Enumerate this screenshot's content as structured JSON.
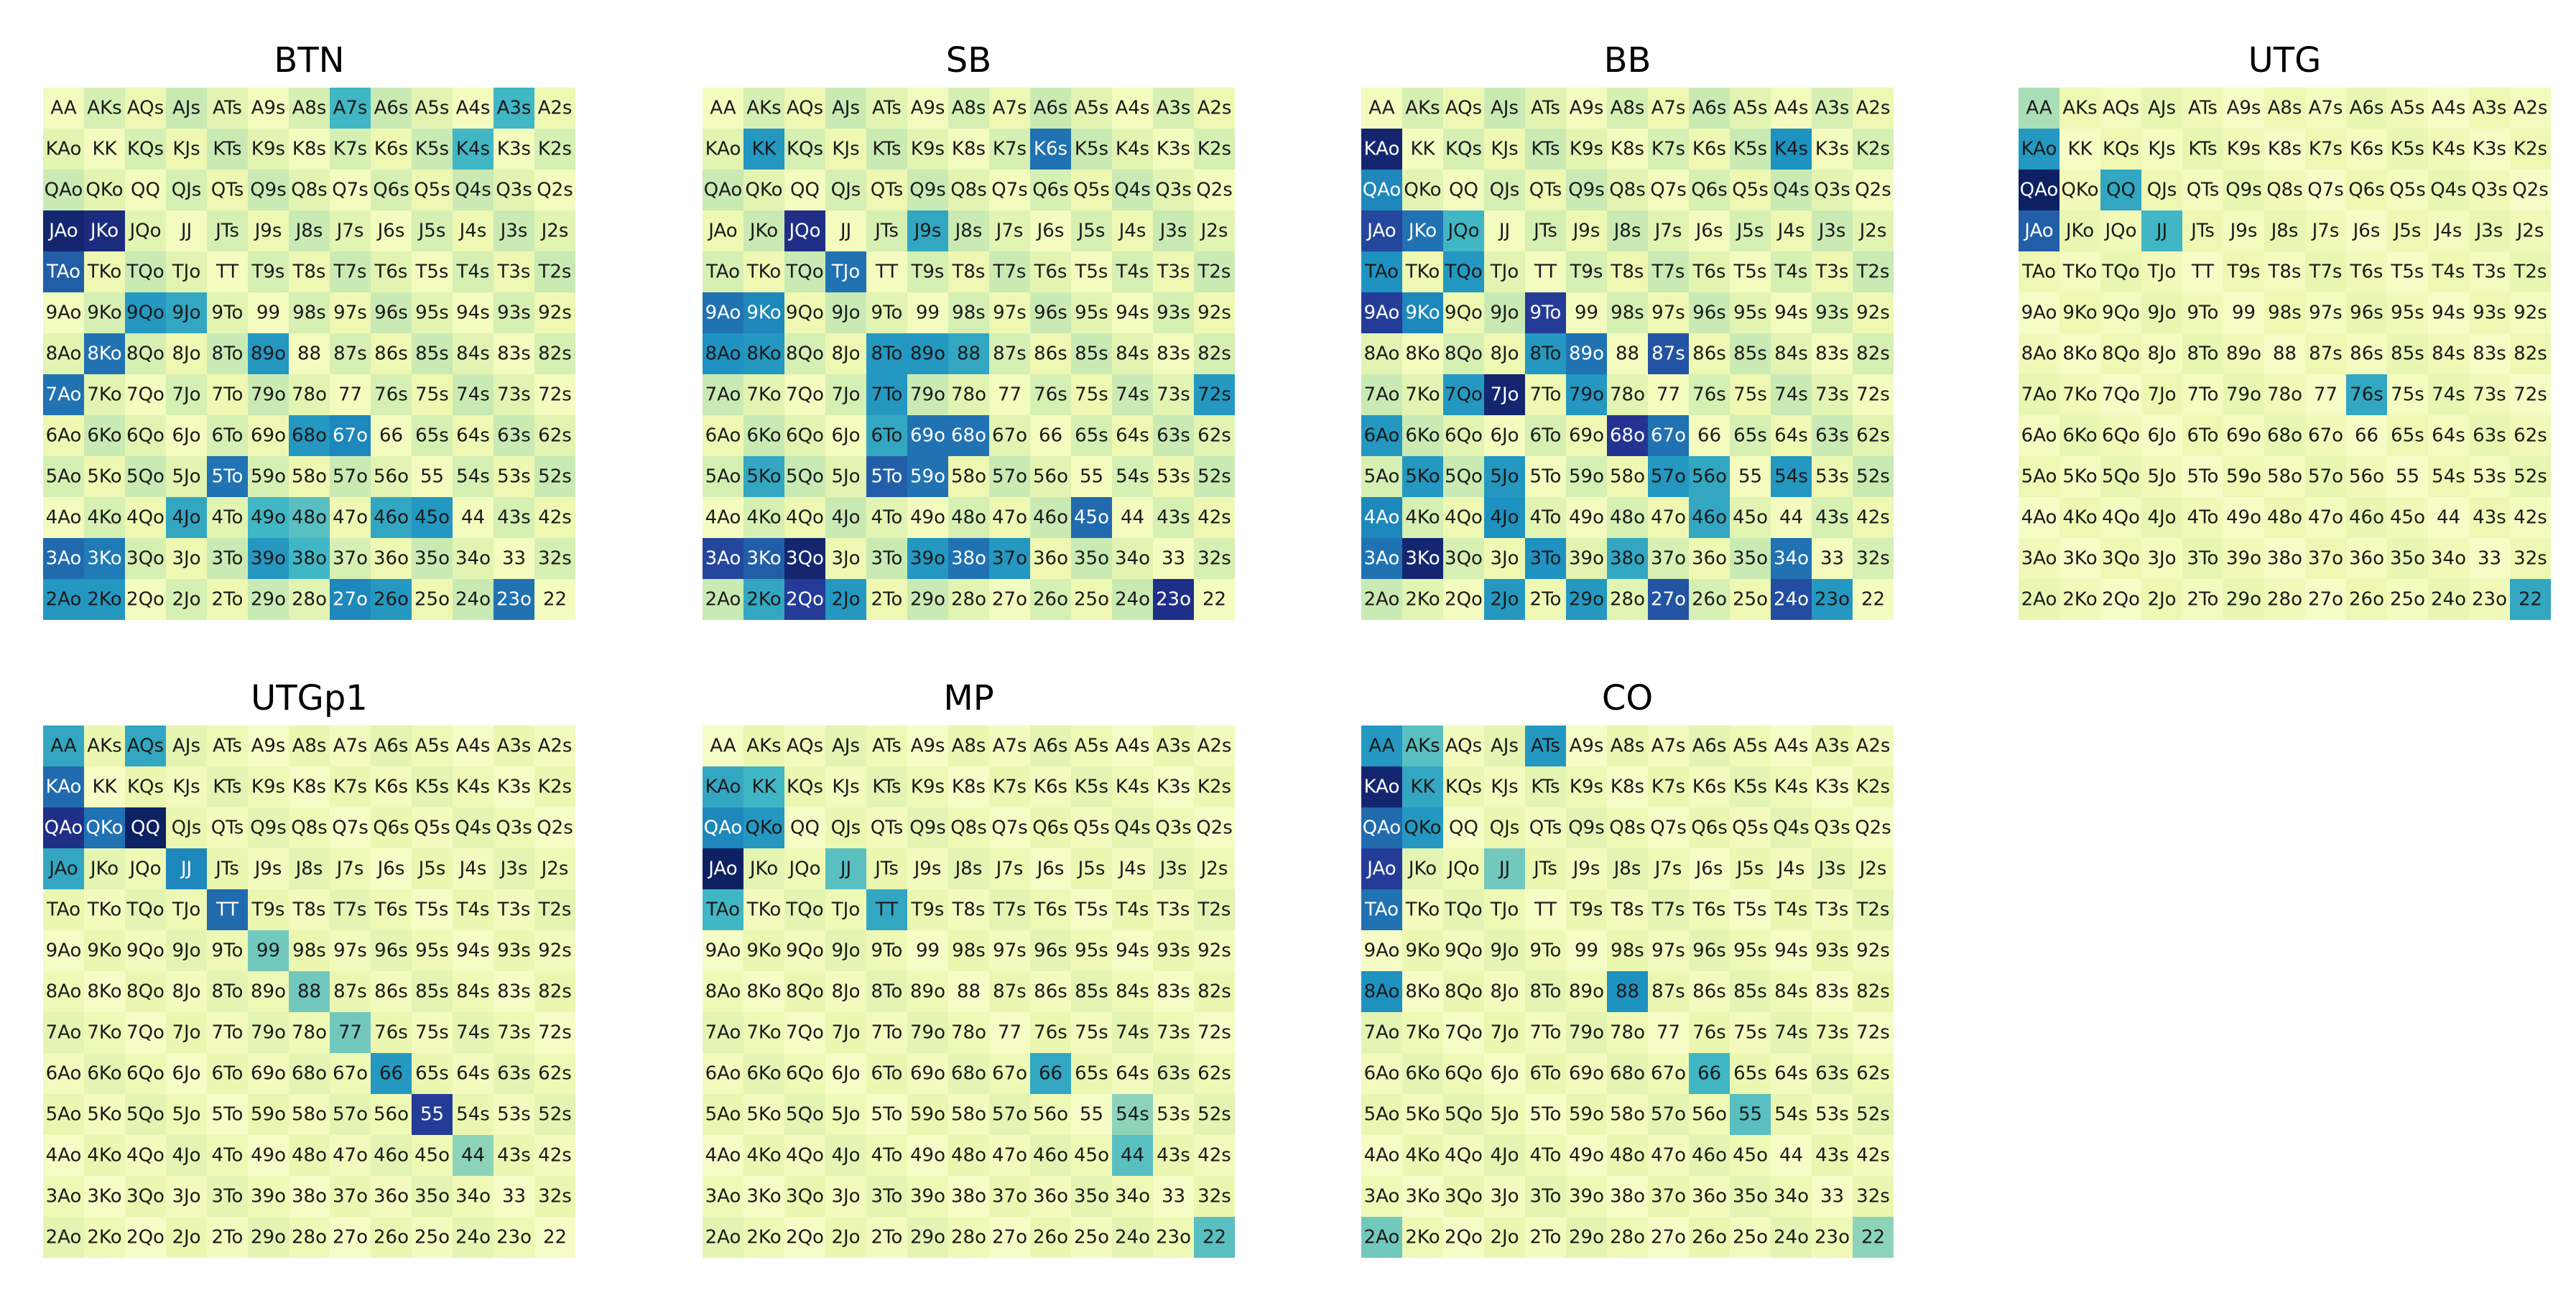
{
  "chart_data": {
    "type": "heatmap",
    "colormap": "YlGnBu",
    "value_range": [
      0,
      1
    ],
    "row_labels": [
      "A",
      "K",
      "Q",
      "J",
      "T",
      "9",
      "8",
      "7",
      "6",
      "5",
      "4",
      "3",
      "2"
    ],
    "panels": [
      {
        "title": "BTN",
        "matrix": []
      },
      {
        "title": "SB",
        "matrix": []
      },
      {
        "title": "BB",
        "matrix": []
      },
      {
        "title": "UTG",
        "matrix": []
      },
      {
        "title": "UTGp1",
        "matrix": []
      },
      {
        "title": "MP",
        "matrix": []
      },
      {
        "title": "CO",
        "matrix": []
      }
    ],
    "hand_grid": [
      [
        "AA",
        "AKs",
        "AQs",
        "AJs",
        "ATs",
        "A9s",
        "A8s",
        "A7s",
        "A6s",
        "A5s",
        "A4s",
        "A3s",
        "A2s"
      ],
      [
        "KAo",
        "KK",
        "KQs",
        "KJs",
        "KTs",
        "K9s",
        "K8s",
        "K7s",
        "K6s",
        "K5s",
        "K4s",
        "K3s",
        "K2s"
      ],
      [
        "QAo",
        "QKo",
        "QQ",
        "QJs",
        "QTs",
        "Q9s",
        "Q8s",
        "Q7s",
        "Q6s",
        "Q5s",
        "Q4s",
        "Q3s",
        "Q2s"
      ],
      [
        "JAo",
        "JKo",
        "JQo",
        "JJ",
        "JTs",
        "J9s",
        "J8s",
        "J7s",
        "J6s",
        "J5s",
        "J4s",
        "J3s",
        "J2s"
      ],
      [
        "TAo",
        "TKo",
        "TQo",
        "TJo",
        "TT",
        "T9s",
        "T8s",
        "T7s",
        "T6s",
        "T5s",
        "T4s",
        "T3s",
        "T2s"
      ],
      [
        "9Ao",
        "9Ko",
        "9Qo",
        "9Jo",
        "9To",
        "99",
        "98s",
        "97s",
        "96s",
        "95s",
        "94s",
        "93s",
        "92s"
      ],
      [
        "8Ao",
        "8Ko",
        "8Qo",
        "8Jo",
        "8To",
        "89o",
        "88",
        "87s",
        "86s",
        "85s",
        "84s",
        "83s",
        "82s"
      ],
      [
        "7Ao",
        "7Ko",
        "7Qo",
        "7Jo",
        "7To",
        "79o",
        "78o",
        "77",
        "76s",
        "75s",
        "74s",
        "73s",
        "72s"
      ],
      [
        "6Ao",
        "6Ko",
        "6Qo",
        "6Jo",
        "6To",
        "69o",
        "68o",
        "67o",
        "66",
        "65s",
        "64s",
        "63s",
        "62s"
      ],
      [
        "5Ao",
        "5Ko",
        "5Qo",
        "5Jo",
        "5To",
        "59o",
        "58o",
        "57o",
        "56o",
        "55",
        "54s",
        "53s",
        "52s"
      ],
      [
        "4Ao",
        "4Ko",
        "4Qo",
        "4Jo",
        "4To",
        "49o",
        "48o",
        "47o",
        "46o",
        "45o",
        "44",
        "43s",
        "42s"
      ],
      [
        "3Ao",
        "3Ko",
        "3Qo",
        "3Jo",
        "3To",
        "39o",
        "38o",
        "37o",
        "36o",
        "35o",
        "34o",
        "33",
        "32s"
      ],
      [
        "2Ao",
        "2Ko",
        "2Qo",
        "2Jo",
        "2To",
        "29o",
        "28o",
        "27o",
        "26o",
        "25o",
        "24o",
        "23o",
        "22"
      ]
    ]
  }
}
